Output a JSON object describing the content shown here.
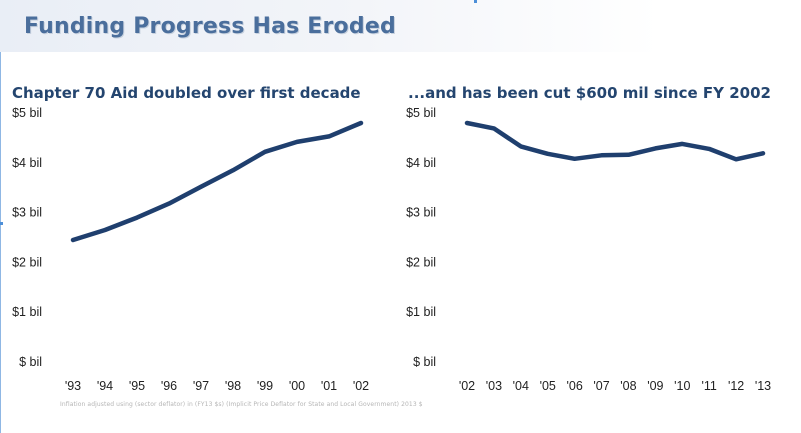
{
  "title": "Funding Progress Has Eroded",
  "footnote": "Inflation adjusted using (sector deflator) in (FY13 $s) (Implicit Price Deflator for State and Local Government) 2013 $",
  "colors": {
    "line": "#1f3f6e",
    "title": "#4a6e9c",
    "panel_title": "#24456f"
  },
  "chart_data": [
    {
      "type": "line",
      "title": "Chapter 70 Aid doubled over first decade",
      "xlabel": "",
      "ylabel": "",
      "categories": [
        "'93",
        "'94",
        "'95",
        "'96",
        "'97",
        "'98",
        "'99",
        "'00",
        "'01",
        "'02"
      ],
      "series": [
        {
          "values": [
            2.45,
            2.65,
            2.9,
            3.18,
            3.52,
            3.85,
            4.22,
            4.42,
            4.53,
            4.8
          ]
        }
      ],
      "ylim": [
        0,
        5
      ],
      "yticks": [
        "$ bil",
        "$1 bil",
        "$2 bil",
        "$3 bil",
        "$4 bil",
        "$5 bil"
      ],
      "grid": false,
      "legend": "none"
    },
    {
      "type": "line",
      "title": "...and has been cut $600 mil since FY 2002",
      "xlabel": "",
      "ylabel": "",
      "categories": [
        "'02",
        "'03",
        "'04",
        "'05",
        "'06",
        "'07",
        "'08",
        "'09",
        "'10",
        "'11",
        "'12",
        "'13"
      ],
      "series": [
        {
          "values": [
            4.8,
            4.69,
            4.33,
            4.18,
            4.08,
            4.15,
            4.16,
            4.29,
            4.38,
            4.28,
            4.07,
            4.19
          ]
        }
      ],
      "ylim": [
        0,
        5
      ],
      "yticks": [
        "$ bil",
        "$1 bil",
        "$2 bil",
        "$3 bil",
        "$4 bil",
        "$5 bil"
      ],
      "grid": false,
      "legend": "none"
    }
  ]
}
